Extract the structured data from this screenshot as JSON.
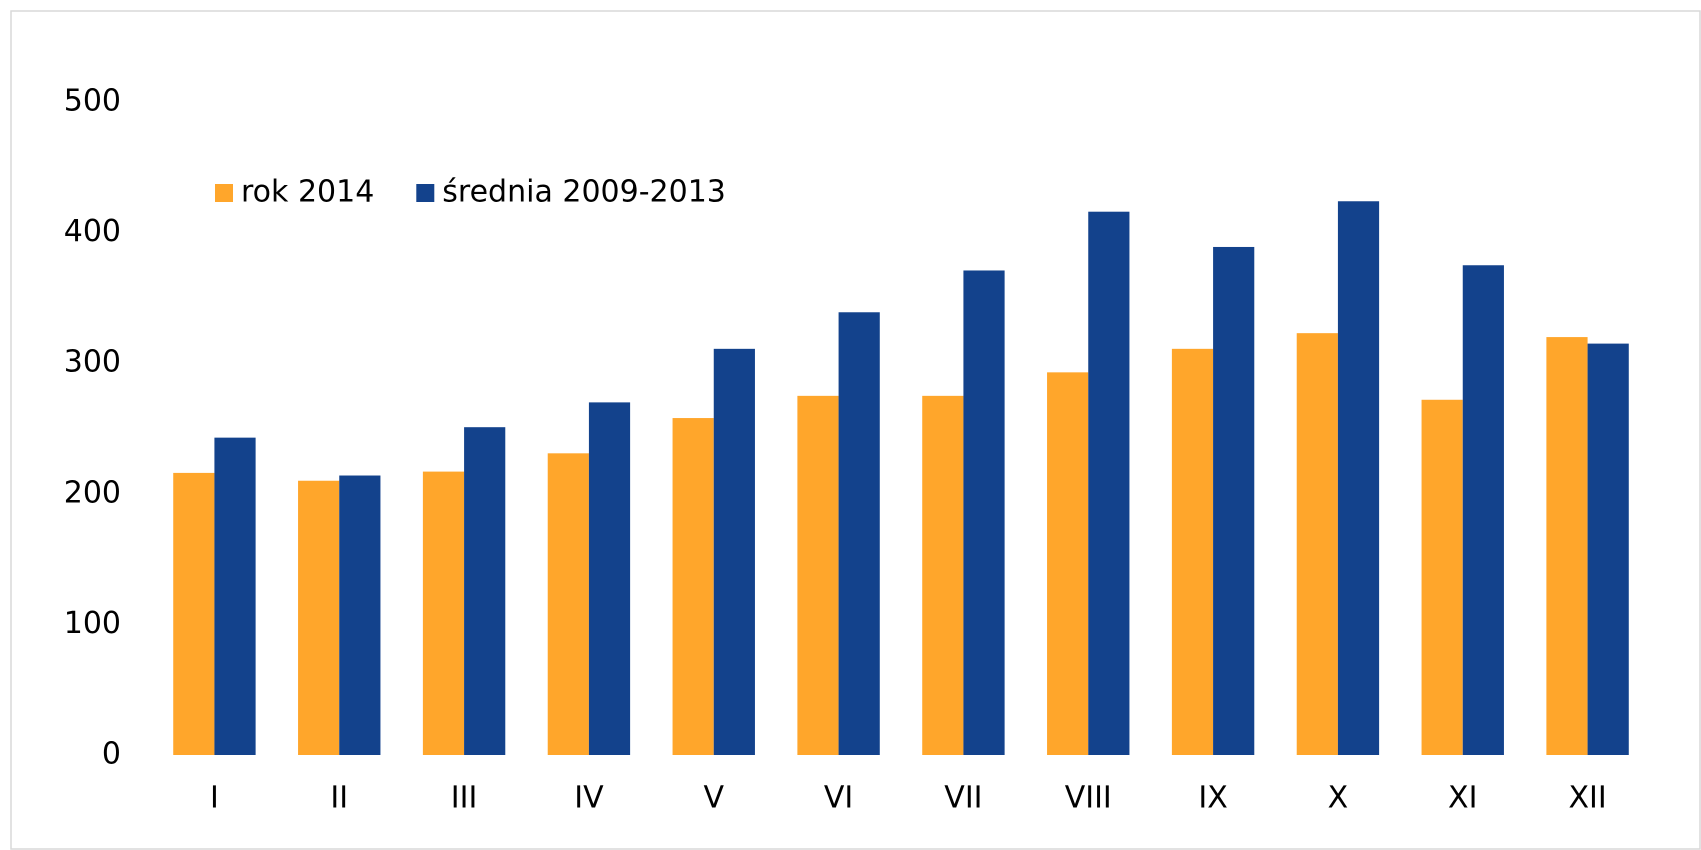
{
  "chart_data": {
    "type": "bar",
    "categories": [
      "I",
      "II",
      "III",
      "IV",
      "V",
      "VI",
      "VII",
      "VIII",
      "IX",
      "X",
      "XI",
      "XII"
    ],
    "series": [
      {
        "name": "rok 2014",
        "color": "#ffa62b",
        "values": [
          216,
          210,
          217,
          231,
          258,
          275,
          275,
          293,
          311,
          323,
          272,
          320
        ]
      },
      {
        "name": "średnia 2009-2013",
        "color": "#13428c",
        "values": [
          243,
          214,
          251,
          270,
          311,
          339,
          371,
          416,
          389,
          424,
          375,
          315
        ]
      }
    ],
    "ylim": [
      0,
      500
    ],
    "yticks": [
      0,
      100,
      200,
      300,
      400,
      500
    ],
    "grid": false,
    "legend": "top-left"
  }
}
